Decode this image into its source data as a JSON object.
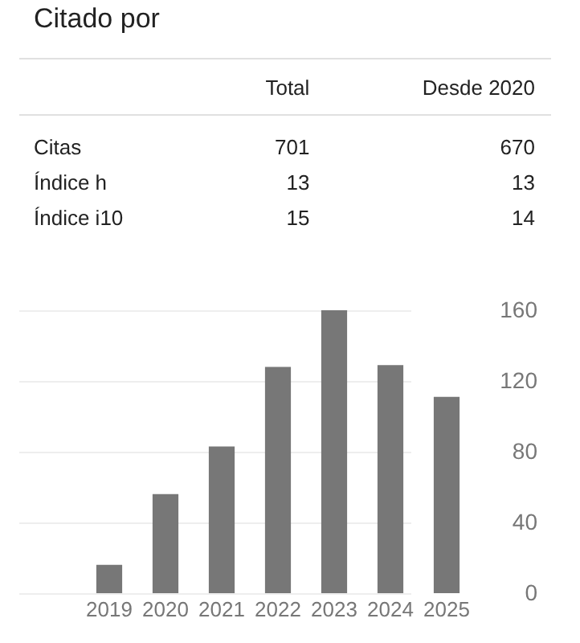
{
  "chart_data": [
    {
      "type": "other",
      "title": "Citado por",
      "categories": [
        "Total",
        "Desde 2020"
      ],
      "y_categories": [
        "Citas",
        "Índice h",
        "Índice i10"
      ],
      "cell_labels": [
        [
          "701",
          "670"
        ],
        [
          "13",
          "13"
        ],
        [
          "15",
          "14"
        ]
      ]
    },
    {
      "type": "bar",
      "categories": [
        "2019",
        "2020",
        "2021",
        "2022",
        "2023",
        "2024",
        "2025"
      ],
      "values": [
        16,
        56,
        83,
        128,
        160,
        129,
        111
      ],
      "color": "#777777",
      "ylim": [
        0,
        160
      ],
      "yticks": [
        0,
        40,
        80,
        120,
        160
      ],
      "grid": "y"
    }
  ]
}
